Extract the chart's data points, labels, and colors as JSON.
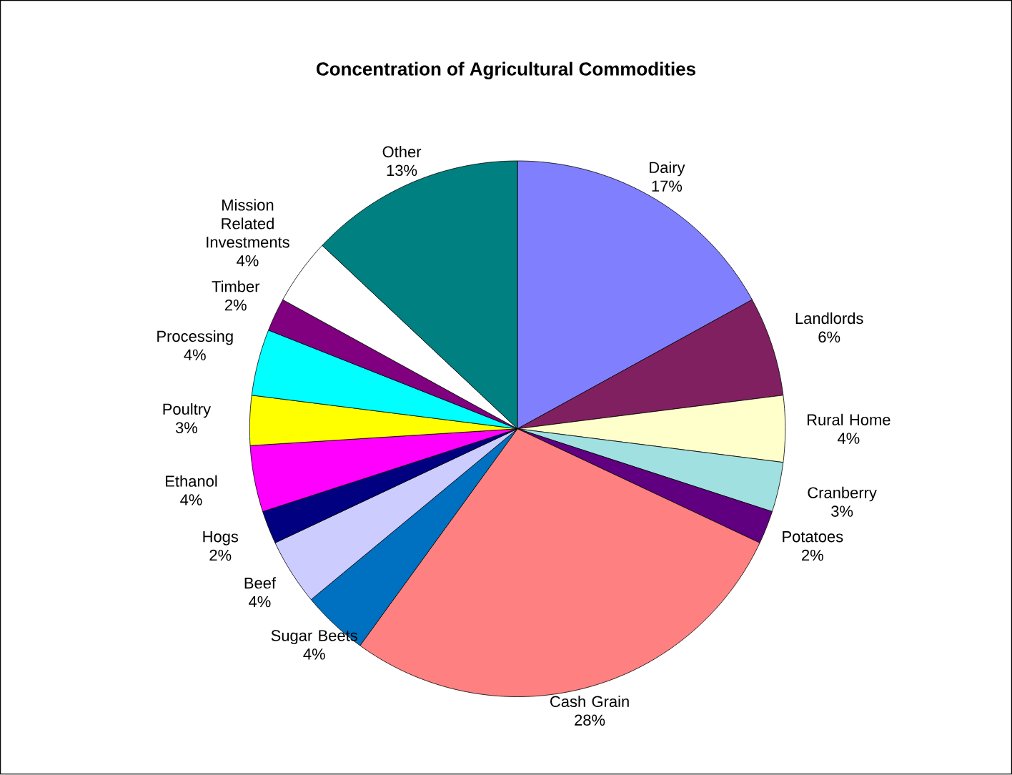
{
  "chart_data": {
    "type": "pie",
    "title": "Concentration of Agricultural  Commodities",
    "categories": [
      "Dairy",
      "Landlords",
      "Rural Home",
      "Cranberry",
      "Potatoes",
      "Cash Grain",
      "Sugar Beets",
      "Beef",
      "Hogs",
      "Ethanol",
      "Poultry",
      "Processing",
      "Timber",
      "Mission Related Investments",
      "Other"
    ],
    "values": [
      17,
      6,
      4,
      3,
      2,
      28,
      4,
      4,
      2,
      4,
      3,
      4,
      2,
      4,
      13
    ],
    "colors": [
      "#8080ff",
      "#802060",
      "#ffffcc",
      "#a0e0e0",
      "#600080",
      "#ff8080",
      "#0070c0",
      "#ccccff",
      "#000080",
      "#ff00ff",
      "#ffff00",
      "#00ffff",
      "#800080",
      "#ffffff",
      "#008080"
    ],
    "value_labels": [
      "17%",
      "6%",
      "4%",
      "3%",
      "2%",
      "28%",
      "4%",
      "4%",
      "2%",
      "4%",
      "3%",
      "4%",
      "2%",
      "4%",
      "13%"
    ]
  }
}
